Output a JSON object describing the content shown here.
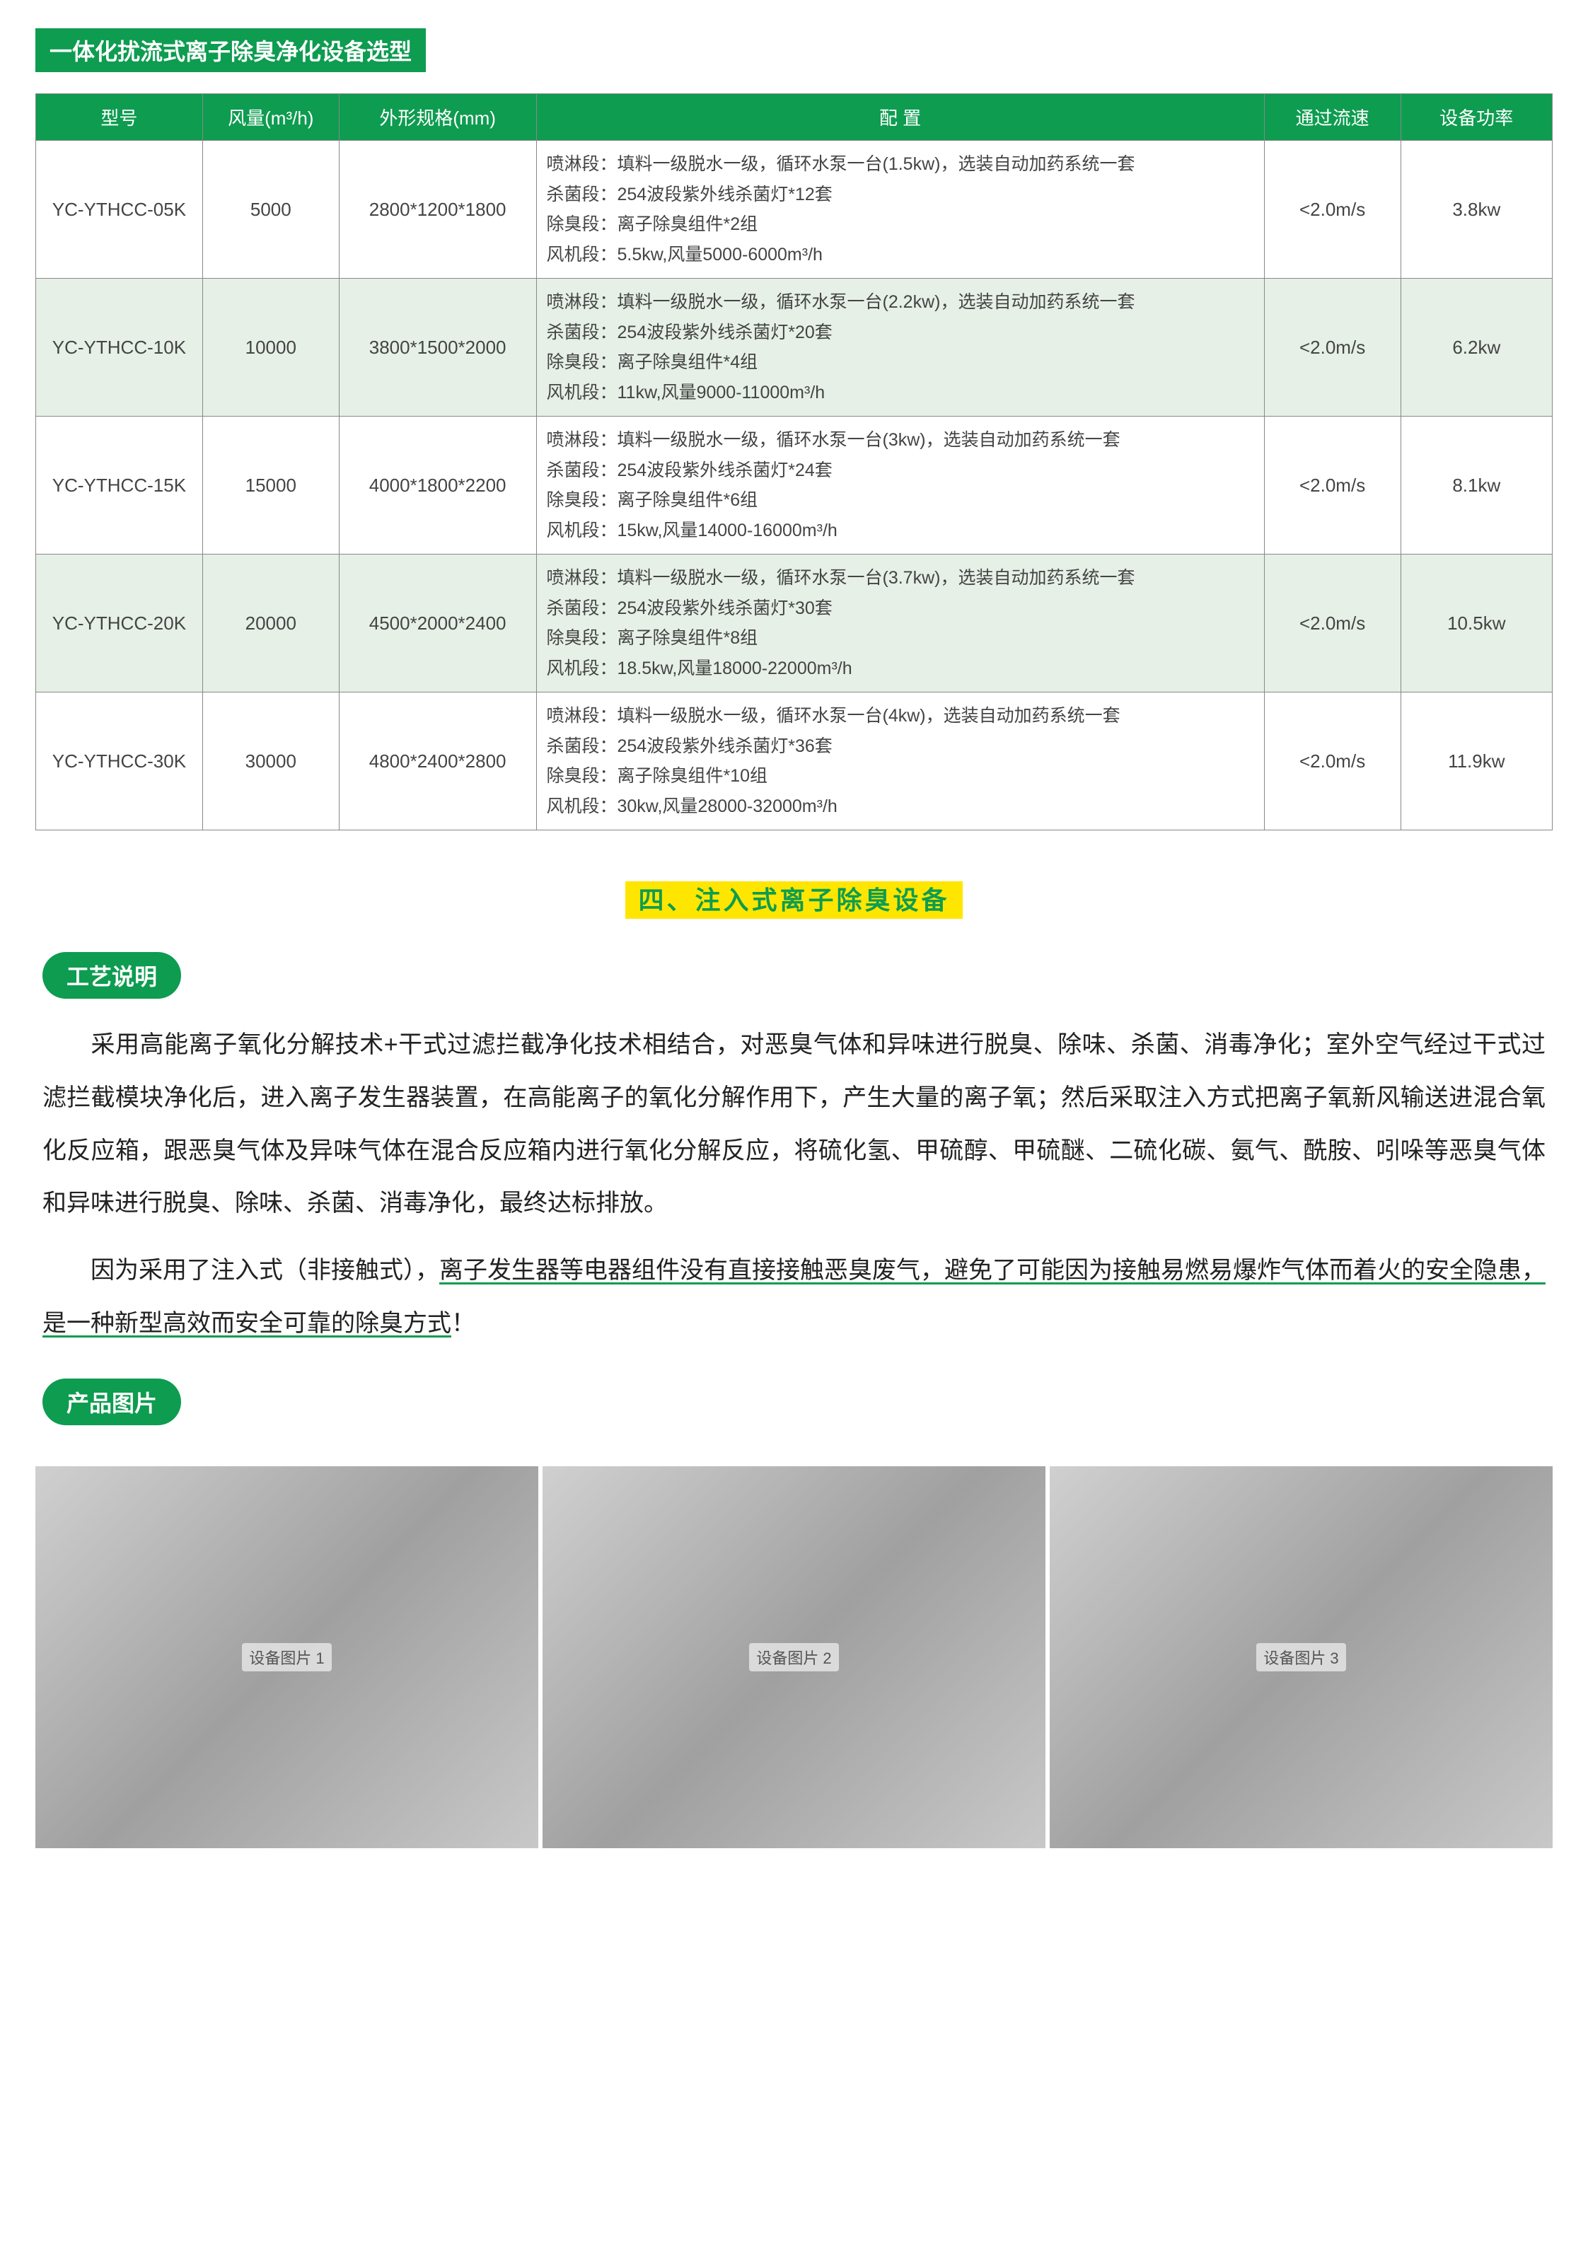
{
  "topTitle": "一体化扰流式离子除臭净化设备选型",
  "table": {
    "headers": [
      "型号",
      "风量(m³/h)",
      "外形规格(mm)",
      "配 置",
      "通过流速",
      "设备功率"
    ],
    "colWidths": [
      "11%",
      "9%",
      "13%",
      "48%",
      "9%",
      "10%"
    ],
    "rows": [
      {
        "alt": false,
        "model": "YC-YTHCC-05K",
        "air": "5000",
        "size": "2800*1200*1800",
        "config": "喷淋段：填料一级脱水一级，循环水泵一台(1.5kw)，选装自动加药系统一套\n杀菌段：254波段紫外线杀菌灯*12套\n除臭段：离子除臭组件*2组\n风机段：5.5kw,风量5000-6000m³/h",
        "flow": "<2.0m/s",
        "power": "3.8kw"
      },
      {
        "alt": true,
        "model": "YC-YTHCC-10K",
        "air": "10000",
        "size": "3800*1500*2000",
        "config": "喷淋段：填料一级脱水一级，循环水泵一台(2.2kw)，选装自动加药系统一套\n杀菌段：254波段紫外线杀菌灯*20套\n除臭段：离子除臭组件*4组\n风机段：11kw,风量9000-11000m³/h",
        "flow": "<2.0m/s",
        "power": "6.2kw"
      },
      {
        "alt": false,
        "model": "YC-YTHCC-15K",
        "air": "15000",
        "size": "4000*1800*2200",
        "config": "喷淋段：填料一级脱水一级，循环水泵一台(3kw)，选装自动加药系统一套\n杀菌段：254波段紫外线杀菌灯*24套\n除臭段：离子除臭组件*6组\n风机段：15kw,风量14000-16000m³/h",
        "flow": "<2.0m/s",
        "power": "8.1kw"
      },
      {
        "alt": true,
        "model": "YC-YTHCC-20K",
        "air": "20000",
        "size": "4500*2000*2400",
        "config": "喷淋段：填料一级脱水一级，循环水泵一台(3.7kw)，选装自动加药系统一套\n杀菌段：254波段紫外线杀菌灯*30套\n除臭段：离子除臭组件*8组\n风机段：18.5kw,风量18000-22000m³/h",
        "flow": "<2.0m/s",
        "power": "10.5kw"
      },
      {
        "alt": false,
        "model": "YC-YTHCC-30K",
        "air": "30000",
        "size": "4800*2400*2800",
        "config": "喷淋段：填料一级脱水一级，循环水泵一台(4kw)，选装自动加药系统一套\n杀菌段：254波段紫外线杀菌灯*36套\n除臭段：离子除臭组件*10组\n风机段：30kw,风量28000-32000m³/h",
        "flow": "<2.0m/s",
        "power": "11.9kw"
      }
    ]
  },
  "sectionFourTitle": "四、注入式离子除臭设备",
  "pillProcess": "工艺说明",
  "para1a": "采用高能离子氧化分解技术+干式过滤拦截净化技术相结合，对恶臭气体和异味进行脱臭、除味、杀菌、消毒净化；室外空气经过干式过滤拦截模块净化后，进入离子发生器装置，在高能离子的氧化分解作用下，产生大量的离子氧；然后采取注入方式把离子氧新风输送进混合氧化反应箱，跟恶臭气体及异味气体在混合反应箱内进行氧化分解反应，将硫化氢、甲硫醇、甲硫醚、二硫化碳、氨气、酰胺、吲哚等恶臭气体和异味进行脱臭、除味、杀菌、消毒净化，最终达标排放。",
  "para2a": "因为采用了注入式（非接触式），",
  "para2u": "离子发生器等电器组件没有直接接触恶臭废气，避免了可能因为接触易燃易爆炸气体而着火的安全隐患，是一种新型高效而安全可靠的除臭方式",
  "para2b": "！",
  "pillPhotos": "产品图片",
  "photos": [
    "设备图片 1",
    "设备图片 2",
    "设备图片 3"
  ],
  "colors": {
    "brandGreen": "#0e9c50",
    "highlightYellow": "#ffe600",
    "altRow": "#e6f0e6"
  }
}
